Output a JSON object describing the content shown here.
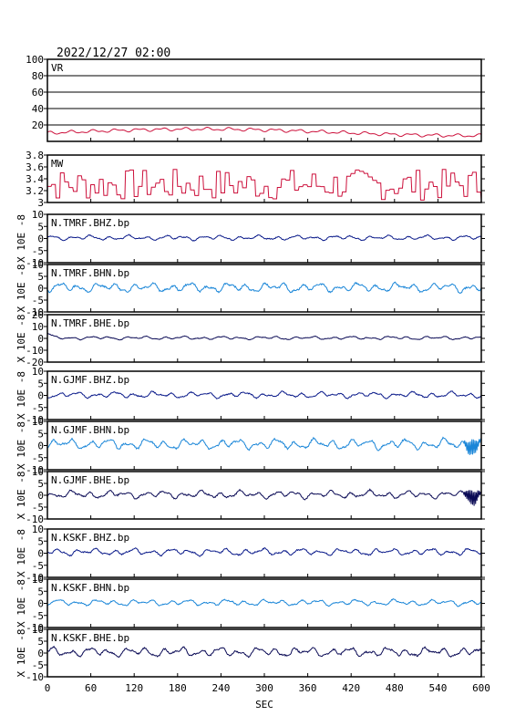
{
  "header": {
    "timestamp": "2022/12/27 02:00"
  },
  "colors": {
    "vr": "#cc0f3a",
    "mw": "#cc0f3a",
    "bhz": "#0a1a8a",
    "bhn": "#1a86d8",
    "bhe": "#0a0a55",
    "frame": "#000000",
    "grid": "#000000"
  },
  "chart_data": {
    "type": "line",
    "xlabel": "SEC",
    "xlim": [
      0,
      600
    ],
    "xticks": [
      0,
      60,
      120,
      180,
      240,
      300,
      360,
      420,
      480,
      540,
      600
    ],
    "ylabel": "X 10E -8",
    "panels": [
      {
        "label": "VR",
        "ylim": [
          0,
          100
        ],
        "yticks": [
          20,
          40,
          60,
          80,
          100
        ],
        "grid": true,
        "color_key": "vr",
        "base": 11,
        "amp": 1.4,
        "trend": "vr",
        "seed": 3,
        "style": "smooth"
      },
      {
        "label": "MW",
        "ylim": [
          3.0,
          3.8
        ],
        "yticks": [
          3.0,
          3.2,
          3.4,
          3.6,
          3.8
        ],
        "grid": false,
        "color_key": "mw",
        "base": 3.3,
        "amp": 0.12,
        "seed": 7,
        "style": "step"
      },
      {
        "label": "N.TMRF.BHZ.bp",
        "ylim": [
          -10,
          10
        ],
        "yticks": [
          -10,
          -5,
          0,
          5,
          10
        ],
        "grid": false,
        "color_key": "bhz",
        "base": 0.3,
        "amp": 0.55,
        "seed": 11,
        "style": "wave"
      },
      {
        "label": "N.TMRF.BHN.bp",
        "ylim": [
          -10,
          10
        ],
        "yticks": [
          -10,
          -5,
          0,
          5,
          10
        ],
        "grid": false,
        "color_key": "bhn",
        "base": 0.3,
        "amp": 1.1,
        "seed": 13,
        "style": "wave"
      },
      {
        "label": "N.TMRF.BHE.bp",
        "ylim": [
          -20,
          20
        ],
        "yticks": [
          -20,
          -10,
          0,
          10,
          20
        ],
        "grid": false,
        "color_key": "bhe",
        "base": 0.4,
        "amp": 0.8,
        "seed": 17,
        "style": "wave",
        "start_bump": 4
      },
      {
        "label": "N.GJMF.BHZ.bp",
        "ylim": [
          -10,
          10
        ],
        "yticks": [
          -10,
          -5,
          0,
          5,
          10
        ],
        "grid": false,
        "color_key": "bhz",
        "base": 0.2,
        "amp": 0.7,
        "seed": 19,
        "style": "wave"
      },
      {
        "label": "N.GJMF.BHN.bp",
        "ylim": [
          -10,
          10
        ],
        "yticks": [
          -10,
          -5,
          0,
          5,
          10
        ],
        "grid": false,
        "color_key": "bhn",
        "base": 0.6,
        "amp": 1.2,
        "seed": 23,
        "style": "wave",
        "end_bump": 3
      },
      {
        "label": "N.GJMF.BHE.bp",
        "ylim": [
          -10,
          10
        ],
        "yticks": [
          -10,
          -5,
          0,
          5,
          10
        ],
        "grid": false,
        "color_key": "bhe",
        "base": 0.3,
        "amp": 0.9,
        "seed": 29,
        "style": "wave",
        "end_bump": 3
      },
      {
        "label": "N.KSKF.BHZ.bp",
        "ylim": [
          -10,
          10
        ],
        "yticks": [
          -10,
          -5,
          0,
          5,
          10
        ],
        "grid": false,
        "color_key": "bhz",
        "base": 0.5,
        "amp": 0.8,
        "seed": 31,
        "style": "wave"
      },
      {
        "label": "N.KSKF.BHN.bp",
        "ylim": [
          -10,
          10
        ],
        "yticks": [
          -10,
          -5,
          0,
          5,
          10
        ],
        "grid": false,
        "color_key": "bhn",
        "base": 0.3,
        "amp": 0.7,
        "seed": 37,
        "style": "wave"
      },
      {
        "label": "N.KSKF.BHE.bp",
        "ylim": [
          -10,
          10
        ],
        "yticks": [
          -10,
          -5,
          0,
          5,
          10
        ],
        "grid": false,
        "color_key": "bhe",
        "base": 0.4,
        "amp": 1.1,
        "seed": 41,
        "style": "wave"
      }
    ]
  }
}
